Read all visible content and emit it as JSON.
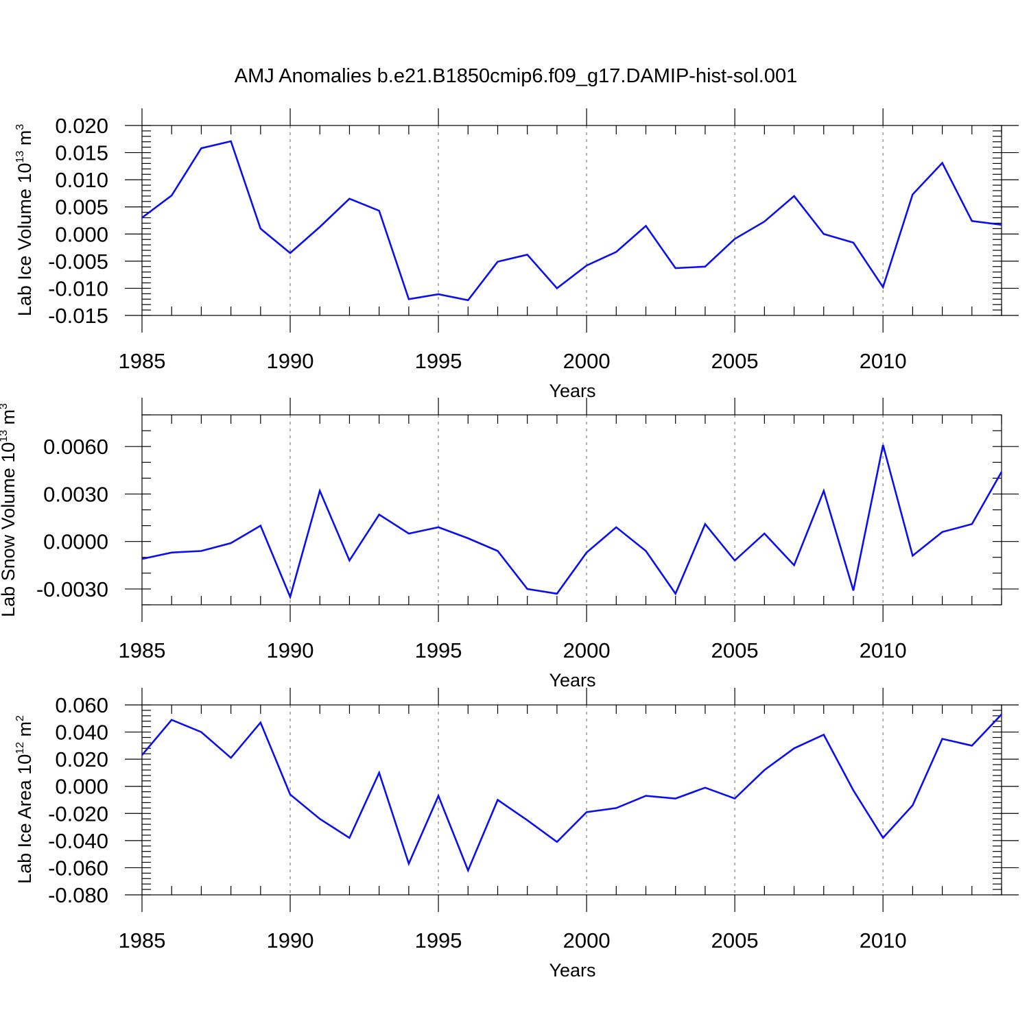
{
  "colors": {
    "line": "#0a0ef0",
    "axis": "#000000",
    "grid": "#9a9a9a"
  },
  "chart_data": [
    {
      "type": "line",
      "title": "AMJ Anomalies b.e21.B1850cmip6.f09_g17.DAMIP-hist-sol.001",
      "ylabel": "Lab Ice Volume 10",
      "ylabel_exp": "13",
      "ylabel_unit": " m",
      "ylabel_unit_exp": "3",
      "xlabel": "Years",
      "xlim": [
        1985,
        2014
      ],
      "ylim": [
        -0.015,
        0.02
      ],
      "y_ticks": [
        -0.015,
        -0.01,
        -0.005,
        0.0,
        0.005,
        0.01,
        0.015,
        0.02
      ],
      "y_tick_labels": [
        "-0.015",
        "-0.010",
        "-0.005",
        "0.000",
        "0.005",
        "0.010",
        "0.015",
        "0.020"
      ],
      "y_minor_step": 0.001,
      "x_ticks": [
        1985,
        1990,
        1995,
        2000,
        2005,
        2010
      ],
      "x_tick_labels": [
        "1985",
        "1990",
        "1995",
        "2000",
        "2005",
        "2010"
      ],
      "grid_x": [
        1990,
        1995,
        2000,
        2005,
        2010
      ],
      "x": [
        1985,
        1986,
        1987,
        1988,
        1989,
        1990,
        1991,
        1992,
        1993,
        1994,
        1995,
        1996,
        1997,
        1998,
        1999,
        2000,
        2001,
        2002,
        2003,
        2004,
        2005,
        2006,
        2007,
        2008,
        2009,
        2010,
        2011,
        2012,
        2013,
        2014
      ],
      "series": [
        {
          "name": "Lab Ice Volume",
          "values": [
            0.003,
            0.0071,
            0.0158,
            0.0171,
            0.001,
            -0.0035,
            0.0013,
            0.0065,
            0.0043,
            -0.012,
            -0.0111,
            -0.0122,
            -0.0051,
            -0.0038,
            -0.01,
            -0.0058,
            -0.0033,
            0.0015,
            -0.0063,
            -0.006,
            -0.0009,
            0.0023,
            0.007,
            0.0,
            -0.0016,
            -0.0098,
            0.0073,
            0.0131,
            0.0024,
            0.0017
          ]
        }
      ]
    },
    {
      "type": "line",
      "ylabel": "Lab Snow Volume 10",
      "ylabel_exp": "13",
      "ylabel_unit": " m",
      "ylabel_unit_exp": "3",
      "xlabel": "Years",
      "xlim": [
        1985,
        2014
      ],
      "ylim": [
        -0.004,
        0.008
      ],
      "y_ticks": [
        -0.003,
        0.0,
        0.003,
        0.006
      ],
      "y_tick_labels": [
        "-0.0030",
        "0.0000",
        "0.0030",
        "0.0060"
      ],
      "y_minor_step": 0.001,
      "x_ticks": [
        1985,
        1990,
        1995,
        2000,
        2005,
        2010
      ],
      "x_tick_labels": [
        "1985",
        "1990",
        "1995",
        "2000",
        "2005",
        "2010"
      ],
      "grid_x": [
        1990,
        1995,
        2000,
        2005,
        2010
      ],
      "x": [
        1985,
        1986,
        1987,
        1988,
        1989,
        1990,
        1991,
        1992,
        1993,
        1994,
        1995,
        1996,
        1997,
        1998,
        1999,
        2000,
        2001,
        2002,
        2003,
        2004,
        2005,
        2006,
        2007,
        2008,
        2009,
        2010,
        2011,
        2012,
        2013,
        2014
      ],
      "series": [
        {
          "name": "Lab Snow Volume",
          "values": [
            -0.0011,
            -0.0007,
            -0.0006,
            -0.0001,
            0.001,
            -0.0035,
            0.0032,
            -0.0012,
            0.0017,
            0.0005,
            0.0009,
            0.0002,
            -0.0006,
            -0.003,
            -0.0033,
            -0.0007,
            0.0009,
            -0.0006,
            -0.0033,
            0.0011,
            -0.0012,
            0.0005,
            -0.0015,
            0.0032,
            -0.0031,
            0.0061,
            -0.0009,
            0.0006,
            0.0011,
            0.0044
          ]
        }
      ]
    },
    {
      "type": "line",
      "ylabel": "Lab Ice Area 10",
      "ylabel_exp": "12",
      "ylabel_unit": " m",
      "ylabel_unit_exp": "2",
      "xlabel": "Years",
      "xlim": [
        1985,
        2014
      ],
      "ylim": [
        -0.08,
        0.06
      ],
      "y_ticks": [
        -0.08,
        -0.06,
        -0.04,
        -0.02,
        0.0,
        0.02,
        0.04,
        0.06
      ],
      "y_tick_labels": [
        "-0.080",
        "-0.060",
        "-0.040",
        "-0.020",
        "0.000",
        "0.020",
        "0.040",
        "0.060"
      ],
      "y_minor_step": 0.004,
      "x_ticks": [
        1985,
        1990,
        1995,
        2000,
        2005,
        2010
      ],
      "x_tick_labels": [
        "1985",
        "1990",
        "1995",
        "2000",
        "2005",
        "2010"
      ],
      "grid_x": [
        1990,
        1995,
        2000,
        2005,
        2010
      ],
      "x": [
        1985,
        1986,
        1987,
        1988,
        1989,
        1990,
        1991,
        1992,
        1993,
        1994,
        1995,
        1996,
        1997,
        1998,
        1999,
        2000,
        2001,
        2002,
        2003,
        2004,
        2005,
        2006,
        2007,
        2008,
        2009,
        2010,
        2011,
        2012,
        2013,
        2014
      ],
      "series": [
        {
          "name": "Lab Ice Area",
          "values": [
            0.023,
            0.049,
            0.04,
            0.021,
            0.047,
            -0.006,
            -0.024,
            -0.038,
            0.01,
            -0.057,
            -0.007,
            -0.062,
            -0.01,
            -0.025,
            -0.041,
            -0.019,
            -0.016,
            -0.007,
            -0.009,
            -0.001,
            -0.009,
            0.012,
            0.028,
            0.038,
            -0.003,
            -0.038,
            -0.014,
            0.035,
            0.03,
            0.053
          ]
        }
      ]
    }
  ]
}
